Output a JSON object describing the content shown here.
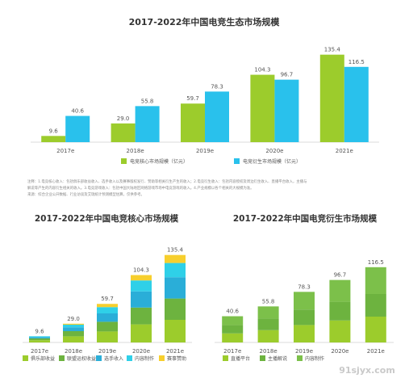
{
  "top": {
    "title": "2017-2022年中国电竞生态市场规模",
    "chart_data": {
      "type": "bar",
      "categories": [
        "2017e",
        "2018e",
        "2019e",
        "2020e",
        "2021e"
      ],
      "series": [
        {
          "name": "电竞核心市场规模（亿元）",
          "values": [
            9.6,
            29.0,
            59.7,
            104.3,
            135.4
          ]
        },
        {
          "name": "电竞衍生市场规模（亿元）",
          "values": [
            40.6,
            55.8,
            78.3,
            96.7,
            116.5
          ]
        }
      ],
      "value_labels": [
        [
          "9.6",
          "29.0",
          "59.7",
          "104.3",
          "135.4"
        ],
        [
          "40.6",
          "55.8",
          "78.3",
          "96.7",
          "116.5"
        ]
      ],
      "ylim": [
        0,
        140
      ]
    },
    "colors": {
      "core": "#9ccc2c",
      "derived": "#29c1ec"
    },
    "notes": [
      "注释：1.电竞核心收入：包括俱乐部收益收入、选手收入以及赛事版权发行、赞助等相关衍生产生的收入；2.电竞衍生收入：包括内容授权及周边衍生收入、直播平台收入，主播与",
      "解说等产生的内容衍生相关的收入。3.电竞游戏收入：包括中国大陆地区网络游戏市场中电竞游戏的收入。4.产业规模以各个相关的大规模为准。",
      "来源：综合企业公开数据、行业访谈及艾瑞统计预测模型估算，仅供参考。"
    ]
  },
  "left": {
    "title": "2017-2022年中国电竞核心市场规模",
    "chart_data": {
      "type": "bar",
      "stacked": true,
      "categories": [
        "2017e",
        "2018e",
        "2019e",
        "2020e",
        "2021e"
      ],
      "totals": [
        9.6,
        29.0,
        59.7,
        104.3,
        135.4
      ],
      "total_labels": [
        "9.6",
        "29.0",
        "59.7",
        "104.3",
        "135.4"
      ],
      "series": [
        {
          "name": "俱乐部收益",
          "values": [
            3.5,
            9.5,
            17.0,
            28.0,
            35.0
          ]
        },
        {
          "name": "联盟运权收益",
          "values": [
            2.8,
            8.0,
            15.0,
            26.0,
            33.0
          ]
        },
        {
          "name": "选手收入",
          "values": [
            2.0,
            6.0,
            13.0,
            25.0,
            33.0
          ]
        },
        {
          "name": "内容制作",
          "values": [
            1.3,
            4.0,
            9.7,
            17.0,
            22.0
          ]
        },
        {
          "name": "赛事赞助",
          "values": [
            0.0,
            1.5,
            5.0,
            8.3,
            12.4
          ]
        }
      ],
      "ylim": [
        0,
        140
      ]
    },
    "colors": [
      "#9ccc2c",
      "#6db33f",
      "#2aaed8",
      "#2fd0e8",
      "#f7cf2d"
    ]
  },
  "right": {
    "title": "2017-2022年中国电竞衍生市场规模",
    "chart_data": {
      "type": "bar",
      "stacked": true,
      "categories": [
        "2017e",
        "2018e",
        "2019e",
        "2020e",
        "2021e"
      ],
      "totals": [
        40.6,
        55.8,
        78.3,
        96.7,
        116.5
      ],
      "total_labels": [
        "40.6",
        "55.8",
        "78.3",
        "96.7",
        "116.5"
      ],
      "series": [
        {
          "name": "直播平台",
          "values": [
            14.0,
            19.0,
            27.0,
            34.0,
            40.0
          ]
        },
        {
          "name": "主播解说",
          "values": [
            13.0,
            18.0,
            24.0,
            29.0,
            35.0
          ]
        },
        {
          "name": "内容制作",
          "values": [
            13.6,
            18.8,
            27.3,
            33.7,
            41.5
          ]
        }
      ],
      "ylim": [
        0,
        140
      ]
    },
    "colors": [
      "#9ccc2c",
      "#6db33f",
      "#7cc04a"
    ]
  },
  "watermark": "91sjyx.com"
}
